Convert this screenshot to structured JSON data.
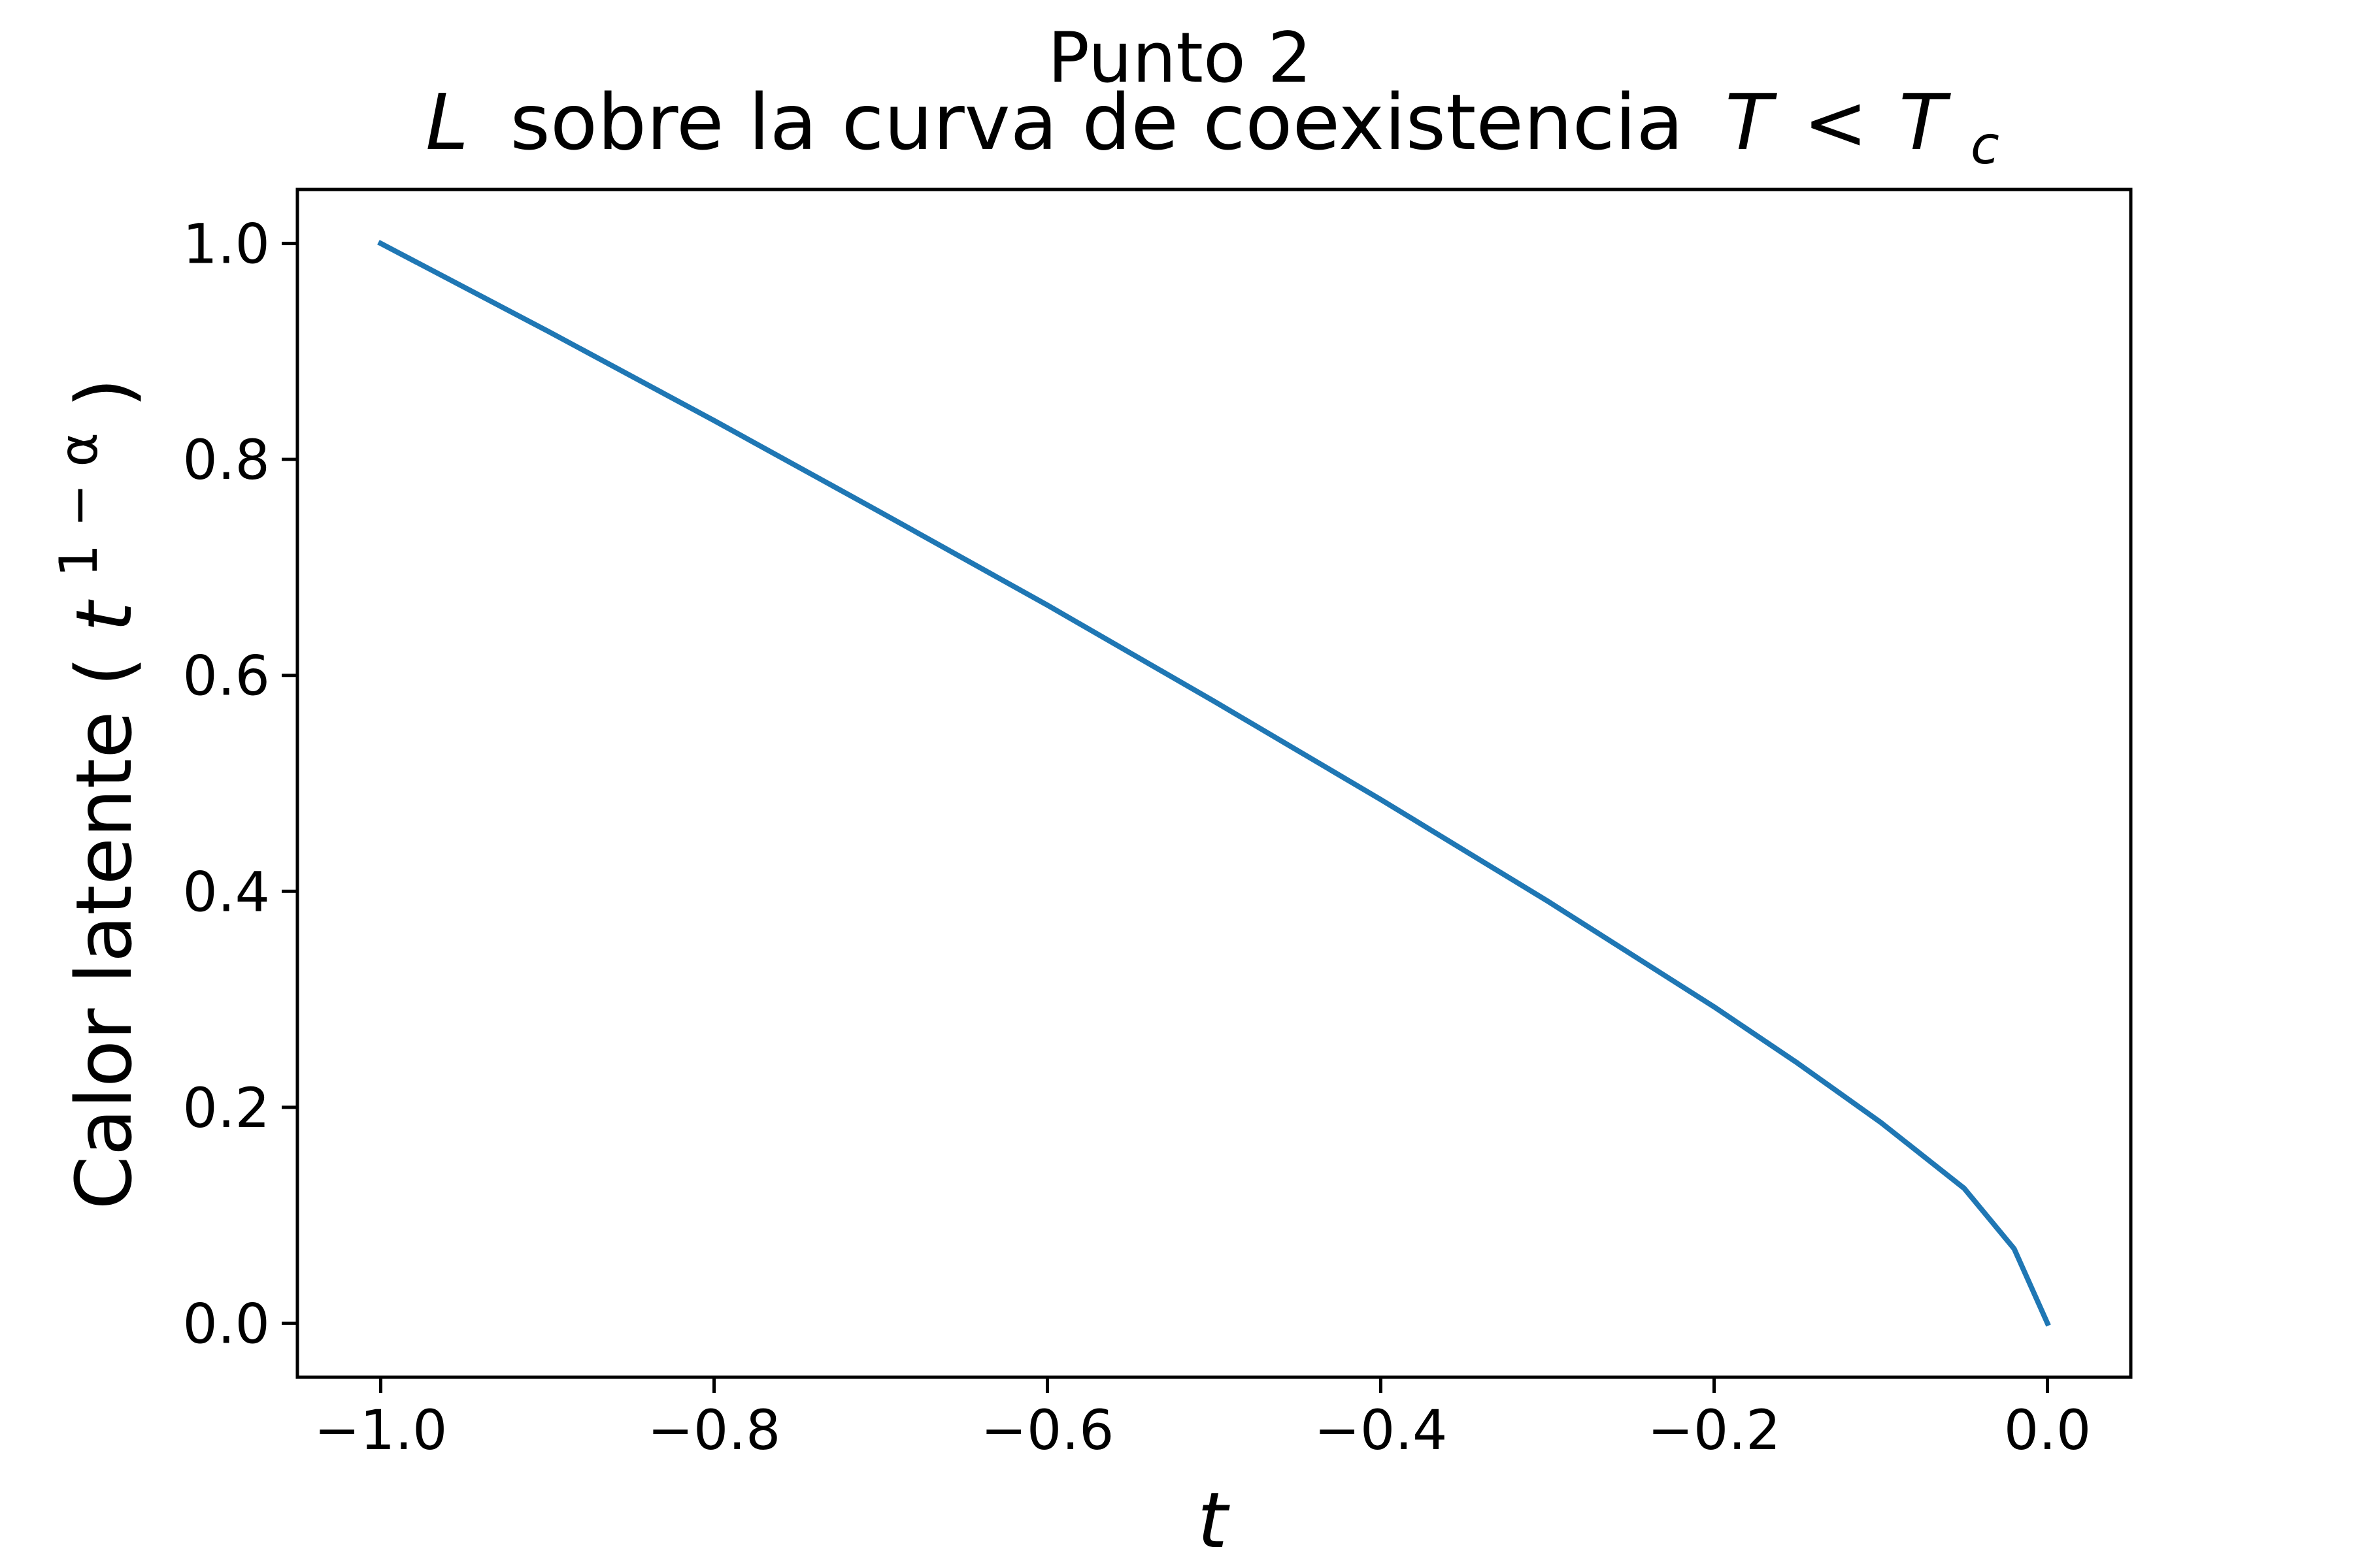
{
  "chart_data": {
    "type": "line",
    "title_line1": "Punto 2",
    "title_line2": {
      "math_l": "L",
      "text": "sobre la curva de coexistencia",
      "math_t": "T",
      "lt": "<",
      "math_tc": "T",
      "sub_c": "c"
    },
    "xlabel": "t",
    "ylabel": {
      "text": "Calor latente (",
      "base": "t",
      "exponent": "1 − α",
      "close": ")"
    },
    "xlim": [
      -1.05,
      0.05
    ],
    "ylim": [
      -0.05,
      1.05
    ],
    "xticks": [
      -1.0,
      -0.8,
      -0.6,
      -0.4,
      -0.2,
      0.0
    ],
    "xtick_labels": [
      "−1.0",
      "−0.8",
      "−0.6",
      "−0.4",
      "−0.2",
      "0.0"
    ],
    "yticks": [
      0.0,
      0.2,
      0.4,
      0.6,
      0.8,
      1.0
    ],
    "ytick_labels": [
      "0.0",
      "0.2",
      "0.4",
      "0.6",
      "0.8",
      "1.0"
    ],
    "grid": false,
    "series": [
      {
        "color": "#1f77b4",
        "x": [
          -1.0,
          -0.9,
          -0.8,
          -0.7,
          -0.6,
          -0.5,
          -0.4,
          -0.3,
          -0.2,
          -0.15,
          -0.1,
          -0.05,
          -0.02,
          0.0
        ],
        "y": [
          1.0,
          0.919,
          0.836,
          0.751,
          0.665,
          0.576,
          0.485,
          0.391,
          0.293,
          0.241,
          0.186,
          0.125,
          0.069,
          0.0
        ]
      }
    ]
  }
}
